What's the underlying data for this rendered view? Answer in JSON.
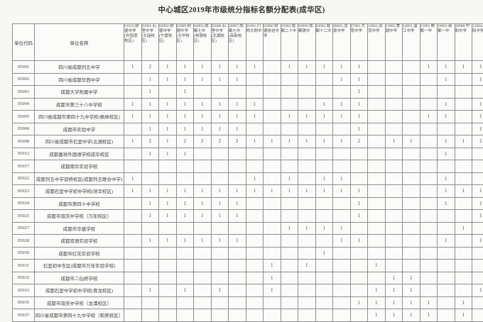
{
  "page": {
    "title": "中心城区2019年市级统分指标名额分配表(成华区)"
  },
  "colors": {
    "page_background": "#f7f7f4",
    "table_background": "#fbfbf9",
    "grid_line": "#8e8e8e",
    "text": "#3c3c3c"
  },
  "table": {
    "corner_headers": [
      "单位代码",
      "单位名称"
    ],
    "columns": [
      "01010.树德中学(外国语校区)",
      "02001.石室中学(文庙校区)",
      "02002.树德中学(宁夏校区)",
      "02009.树德中学(光华校区)",
      "04001.成都七中(林荫校区)",
      "05008.石室中学(北湖校区)",
      "20007.成都七中(高新校区)",
      "01001.川师大附中",
      "02006.树德协进中学",
      "03002.成都二十中",
      "03006.成都铁中",
      "04002.成都十二中",
      "06001.龙泉中学",
      "07001.大弯中学",
      "13001.双流中学",
      "13002.棠湖中学",
      "14001.温江中学",
      "15001.郫都一中",
      "16001.新都一中",
      "20008.中和中学",
      "21004.华阳中学"
    ],
    "rows": [
      {
        "code": "05001",
        "name": "四川省成都列五中学",
        "values": [
          1,
          2,
          1,
          1,
          1,
          1,
          1,
          1,
          "",
          1,
          1,
          1,
          1,
          1,
          "",
          "",
          "",
          1,
          1,
          1,
          1
        ]
      },
      {
        "code": "05002",
        "name": "四川省成都华西中学",
        "values": [
          "",
          1,
          1,
          1,
          1,
          1,
          1,
          "",
          "",
          "",
          "",
          "",
          1,
          1,
          "",
          "",
          "",
          "",
          1,
          "",
          1
        ]
      },
      {
        "code": "05003",
        "name": "成都大学附属中学",
        "values": [
          "",
          1,
          "",
          1,
          "",
          "",
          "",
          "",
          "",
          "",
          "",
          "",
          "",
          1,
          "",
          "",
          "",
          "",
          "",
          "",
          ""
        ]
      },
      {
        "code": "05004",
        "name": "成都市第三十八中学校",
        "values": [
          1,
          1,
          1,
          1,
          1,
          1,
          1,
          1,
          "",
          "",
          "",
          1,
          1,
          1,
          "",
          "",
          "",
          "",
          1,
          "",
          1
        ]
      },
      {
        "code": "05005",
        "name": "四川省成都市第四十九中学校(枫林校区)",
        "values": [
          1,
          1,
          1,
          1,
          1,
          1,
          1,
          1,
          "",
          1,
          1,
          1,
          1,
          1,
          "",
          "",
          "",
          1,
          1,
          "",
          1
        ]
      },
      {
        "code": "05006",
        "name": "成都市实验中学",
        "values": [
          "",
          1,
          1,
          1,
          1,
          1,
          1,
          "",
          "",
          "",
          "",
          "",
          "",
          1,
          "",
          "",
          "",
          "",
          "",
          "",
          1
        ]
      },
      {
        "code": "05008",
        "name": "四川省成都市石室中学(北湖校区)",
        "values": [
          1,
          2,
          1,
          2,
          2,
          2,
          2,
          1,
          1,
          1,
          1,
          1,
          1,
          2,
          "",
          1,
          1,
          "",
          1,
          1,
          2
        ]
      },
      {
        "code": "05012",
        "name": "成都嘉祥外国语学校成华校区",
        "values": [
          "",
          1,
          1,
          1,
          "",
          "",
          "",
          "",
          "",
          "",
          "",
          "",
          "",
          "",
          "",
          "",
          "",
          "",
          1,
          "",
          ""
        ]
      },
      {
        "code": "05017",
        "name": "成都南华实验学校",
        "values": [
          "",
          "",
          "",
          "",
          "",
          "",
          "",
          "",
          "",
          "",
          "",
          "",
          "",
          "",
          "",
          "",
          "",
          "",
          "",
          "",
          ""
        ]
      },
      {
        "code": "05022",
        "name": "成都列五中学双桥校区(成都列五联合中学)",
        "values": [
          1,
          "",
          "",
          "",
          "",
          "",
          "",
          1,
          "",
          1,
          "",
          1,
          1,
          "",
          "",
          "",
          "",
          "",
          1,
          "",
          ""
        ]
      },
      {
        "code": "05023",
        "name": "成都石室中学初中学校(培华校区)",
        "values": [
          1,
          1,
          1,
          1,
          1,
          1,
          1,
          1,
          1,
          1,
          1,
          1,
          1,
          1,
          "",
          "",
          "",
          "",
          1,
          1,
          1
        ]
      },
      {
        "code": "05024",
        "name": "成都市第四十中学校",
        "values": [
          "",
          1,
          1,
          1,
          1,
          1,
          1,
          "",
          "",
          "",
          "",
          "",
          "",
          1,
          "",
          "",
          "",
          "",
          1,
          "",
          1
        ]
      },
      {
        "code": "05025",
        "name": "成都市双庆中学校（万年校区）",
        "values": [
          "",
          1,
          1,
          1,
          1,
          1,
          1,
          "",
          "",
          "",
          "",
          "",
          "",
          1,
          "",
          "",
          "",
          "",
          "",
          "",
          1
        ]
      },
      {
        "code": "05027",
        "name": "成都市华建学校",
        "values": [
          "",
          "",
          "",
          "",
          "",
          "",
          "",
          "",
          "",
          1,
          1,
          1,
          1,
          "",
          "",
          "",
          "",
          "",
          "",
          1,
          ""
        ]
      },
      {
        "code": "05028",
        "name": "成都双语实验学校",
        "values": [
          "",
          1,
          1,
          1,
          1,
          1,
          1,
          "",
          "",
          "",
          "",
          "",
          1,
          1,
          "",
          "",
          "",
          "",
          1,
          "",
          1
        ]
      },
      {
        "code": "05030",
        "name": "成都市红花实验学校",
        "values": [
          "",
          "",
          "",
          "",
          "",
          "",
          "",
          "",
          "",
          "",
          "",
          1,
          "",
          "",
          "",
          "",
          "",
          "",
          "",
          "",
          ""
        ]
      },
      {
        "code": "05031",
        "name": "石室初中东区(成都市万年实验学校)",
        "values": [
          "",
          "",
          "",
          "",
          "",
          "",
          "",
          "",
          1,
          "",
          1,
          "",
          "",
          "",
          1,
          "",
          "",
          "",
          "",
          "",
          ""
        ]
      },
      {
        "code": "05032",
        "name": "成都市二仙桥学校",
        "values": [
          "",
          "",
          "",
          "",
          "",
          "",
          "",
          "",
          1,
          "",
          "",
          "",
          "",
          "",
          "",
          1,
          1,
          "",
          "",
          "",
          ""
        ]
      },
      {
        "code": "05033",
        "name": "成都石室中学初中学校(育龙校区)",
        "values": [
          "",
          1,
          "",
          1,
          "",
          1,
          "",
          "",
          1,
          "",
          "",
          "",
          "",
          "",
          1,
          1,
          1,
          "",
          "",
          "",
          1
        ]
      },
      {
        "code": "05035",
        "name": "成都市双庆中学校（龙潭校区）",
        "values": [
          "",
          "",
          "",
          "",
          "",
          "",
          "",
          "",
          "",
          "",
          "",
          "",
          "",
          1,
          1,
          1,
          1,
          1,
          "",
          1,
          ""
        ]
      },
      {
        "code": "05037",
        "name": "四川省成都市第四十九中学校（和美校区）",
        "values": [
          "",
          "",
          "",
          "",
          "",
          "",
          "",
          "",
          "",
          "",
          "",
          "",
          "",
          "",
          1,
          1,
          1,
          1,
          "",
          1,
          ""
        ]
      }
    ]
  }
}
